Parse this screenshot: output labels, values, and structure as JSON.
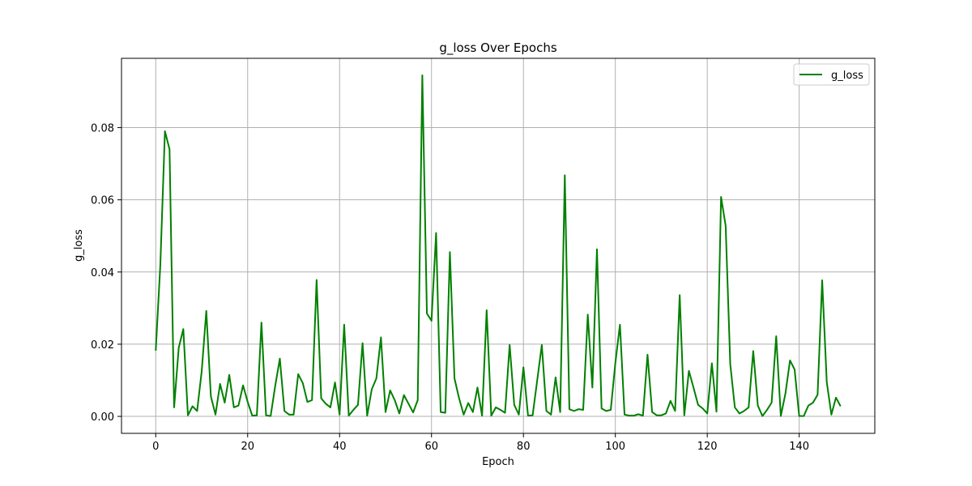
{
  "chart_data": {
    "type": "line",
    "title": "g_loss Over Epochs",
    "xlabel": "Epoch",
    "ylabel": "g_loss",
    "xlim": [
      -7.45,
      156.45
    ],
    "ylim": [
      -0.0047,
      0.0992
    ],
    "xticks": [
      0,
      20,
      40,
      60,
      80,
      100,
      120,
      140
    ],
    "xtick_labels": [
      "0",
      "20",
      "40",
      "60",
      "80",
      "100",
      "120",
      "140"
    ],
    "yticks": [
      0.0,
      0.02,
      0.04,
      0.06,
      0.08
    ],
    "ytick_labels": [
      "0.00",
      "0.02",
      "0.04",
      "0.06",
      "0.08"
    ],
    "grid": true,
    "legend_position": "top-right",
    "series": [
      {
        "name": "g_loss",
        "color": "#008000",
        "x": [
          0,
          1,
          2,
          3,
          4,
          5,
          6,
          7,
          8,
          9,
          10,
          11,
          12,
          13,
          14,
          15,
          16,
          17,
          18,
          19,
          20,
          21,
          22,
          23,
          24,
          25,
          26,
          27,
          28,
          29,
          30,
          31,
          32,
          33,
          34,
          35,
          36,
          37,
          38,
          39,
          40,
          41,
          42,
          43,
          44,
          45,
          46,
          47,
          48,
          49,
          50,
          51,
          52,
          53,
          54,
          55,
          56,
          57,
          58,
          59,
          60,
          61,
          62,
          63,
          64,
          65,
          66,
          67,
          68,
          69,
          70,
          71,
          72,
          73,
          74,
          75,
          76,
          77,
          78,
          79,
          80,
          81,
          82,
          83,
          84,
          85,
          86,
          87,
          88,
          89,
          90,
          91,
          92,
          93,
          94,
          95,
          96,
          97,
          98,
          99,
          100,
          101,
          102,
          103,
          104,
          105,
          106,
          107,
          108,
          109,
          110,
          111,
          112,
          113,
          114,
          115,
          116,
          117,
          118,
          119,
          120,
          121,
          122,
          123,
          124,
          125,
          126,
          127,
          128,
          129,
          130,
          131,
          132,
          133,
          134,
          135,
          136,
          137,
          138,
          139,
          140,
          141,
          142,
          143,
          144,
          145,
          146,
          147,
          148,
          149
        ],
        "y": [
          0.0182,
          0.042,
          0.079,
          0.074,
          0.0025,
          0.019,
          0.0242,
          0.0003,
          0.0028,
          0.0015,
          0.0125,
          0.0292,
          0.0055,
          0.0005,
          0.009,
          0.0038,
          0.0115,
          0.0025,
          0.003,
          0.0086,
          0.004,
          0.0002,
          0.0003,
          0.026,
          0.0003,
          0.0001,
          0.0085,
          0.016,
          0.0015,
          0.0005,
          0.0005,
          0.0117,
          0.0092,
          0.004,
          0.0045,
          0.0378,
          0.005,
          0.0035,
          0.0025,
          0.0094,
          0.0005,
          0.0254,
          0.0002,
          0.0018,
          0.0032,
          0.0203,
          0.0002,
          0.0075,
          0.0105,
          0.0219,
          0.0012,
          0.0072,
          0.0045,
          0.0008,
          0.0059,
          0.0035,
          0.0011,
          0.0045,
          0.0945,
          0.0285,
          0.0265,
          0.0508,
          0.0012,
          0.001,
          0.0455,
          0.0105,
          0.005,
          0.0005,
          0.0037,
          0.0012,
          0.008,
          0.0002,
          0.0294,
          0.0002,
          0.0025,
          0.0018,
          0.001,
          0.0198,
          0.0032,
          0.0005,
          0.0136,
          0.0002,
          0.0003,
          0.01,
          0.0198,
          0.0015,
          0.0005,
          0.0108,
          0.0012,
          0.0668,
          0.002,
          0.0015,
          0.002,
          0.0018,
          0.0282,
          0.008,
          0.0463,
          0.0022,
          0.0015,
          0.0018,
          0.0148,
          0.0254,
          0.0005,
          0.0002,
          0.0002,
          0.0006,
          0.0002,
          0.0171,
          0.0012,
          0.0003,
          0.0003,
          0.0008,
          0.0043,
          0.0015,
          0.0336,
          0.0003,
          0.0126,
          0.008,
          0.0032,
          0.0022,
          0.0008,
          0.0147,
          0.0013,
          0.0608,
          0.0528,
          0.0145,
          0.0025,
          0.0008,
          0.0015,
          0.0025,
          0.0181,
          0.003,
          0.0001,
          0.0018,
          0.0038,
          0.0222,
          0.0001,
          0.0063,
          0.0155,
          0.013,
          0.0001,
          0.0001,
          0.003,
          0.0038,
          0.006,
          0.0377,
          0.0095,
          0.0005,
          0.0052,
          0.0028
        ]
      }
    ]
  }
}
